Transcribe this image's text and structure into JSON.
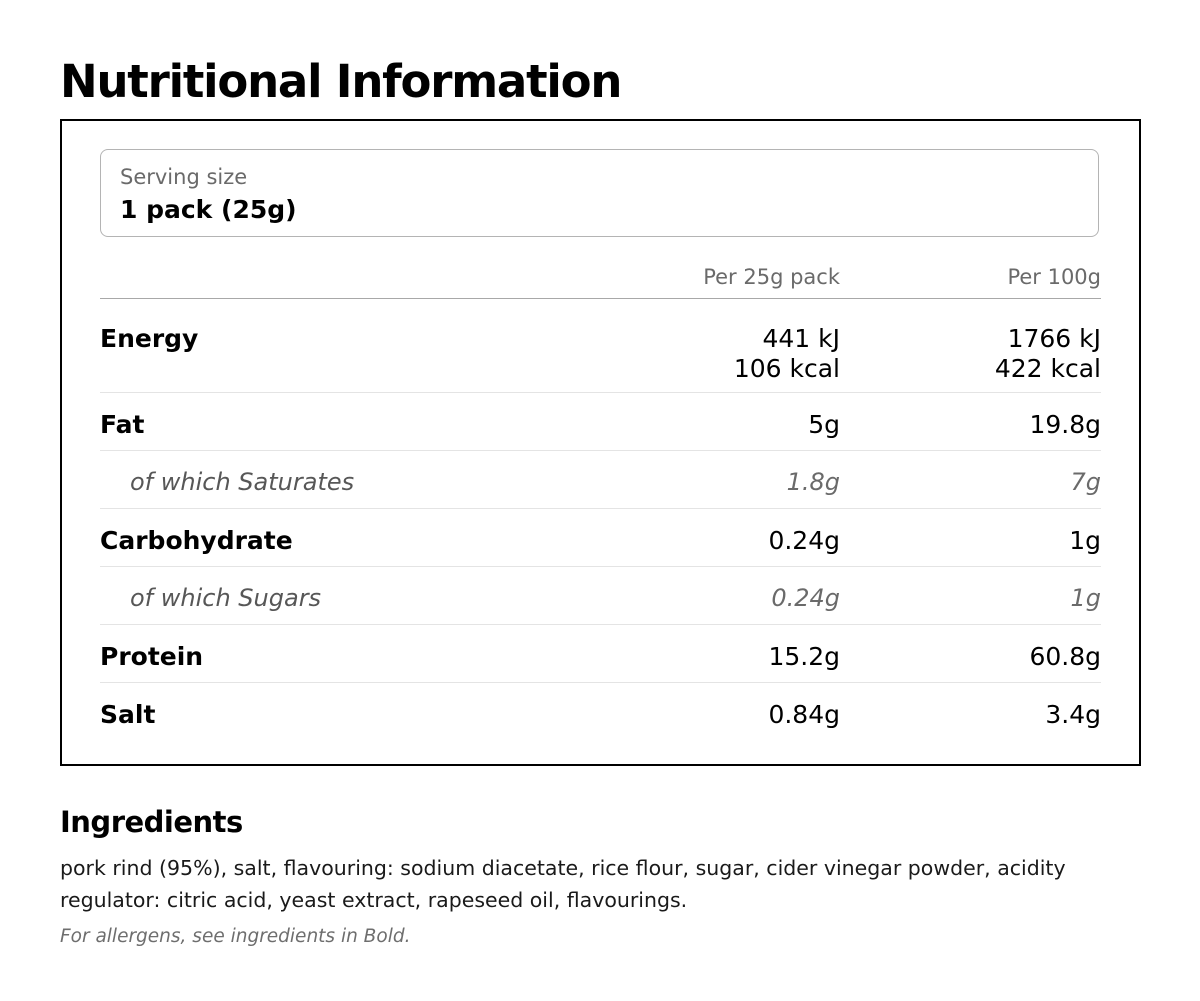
{
  "title": "Nutritional Information",
  "serving": {
    "label": "Serving size",
    "value": "1 pack (25g)"
  },
  "table": {
    "col_a": "Per 25g pack",
    "col_b": "Per 100g",
    "rows": [
      {
        "label": "Energy",
        "a1": "441 kJ",
        "a2": "106 kcal",
        "b1": "1766 kJ",
        "b2": "422 kcal"
      },
      {
        "label": "Fat",
        "a": "5g",
        "b": "19.8g"
      },
      {
        "label": "of which Saturates",
        "a": "1.8g",
        "b": "7g"
      },
      {
        "label": "Carbohydrate",
        "a": "0.24g",
        "b": "1g"
      },
      {
        "label": "of which Sugars",
        "a": "0.24g",
        "b": "1g"
      },
      {
        "label": "Protein",
        "a": "15.2g",
        "b": "60.8g"
      },
      {
        "label": "Salt",
        "a": "0.84g",
        "b": "3.4g"
      }
    ]
  },
  "ingredients": {
    "title": "Ingredients",
    "text": "pork rind (95%), salt, flavouring: sodium diacetate, rice flour, sugar, cider vinegar powder, acidity regulator: citric acid, yeast extract, rapeseed oil, flavourings.",
    "note": "For allergens, see ingredients in Bold."
  }
}
